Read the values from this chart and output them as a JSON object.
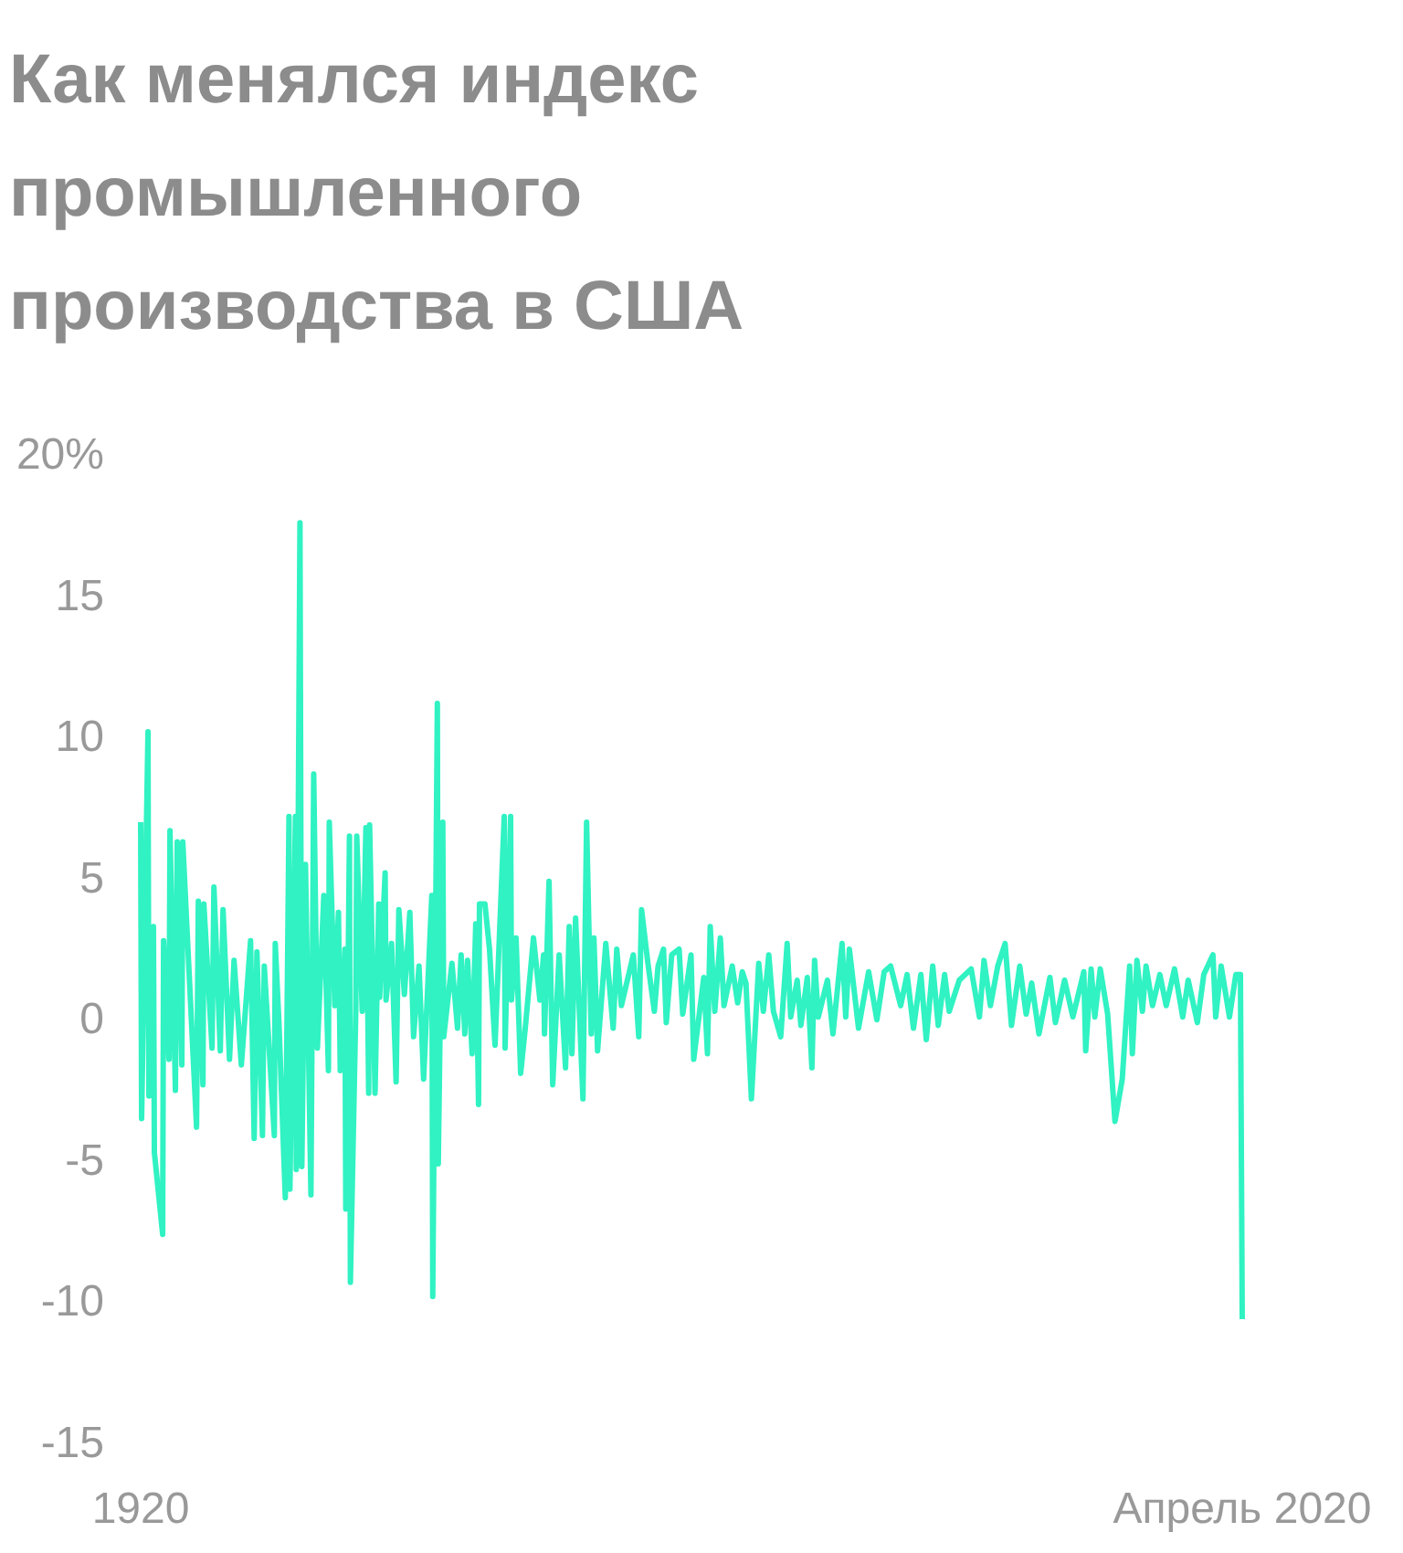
{
  "chart_data": {
    "type": "line",
    "title": "Как менялся индекс промышленного производства в США",
    "x": [
      "1920-01",
      "1920-02",
      "1920-09",
      "1920-10",
      "1921-03",
      "1921-04",
      "1922-01",
      "1922-02",
      "1922-08",
      "1922-09",
      "1923-03",
      "1923-05",
      "1923-10",
      "1923-11",
      "1925-02",
      "1925-04",
      "1925-09",
      "1925-10",
      "1926-07",
      "1926-09",
      "1927-04",
      "1927-07",
      "1928-02",
      "1928-07",
      "1929-03",
      "1930-01",
      "1930-05",
      "1930-08",
      "1931-02",
      "1931-04",
      "1932-03",
      "1932-04",
      "1932-08",
      "1933-03",
      "1933-07",
      "1933-08",
      "1934-02",
      "1934-03",
      "1934-07",
      "1934-09",
      "1935-01",
      "1935-07",
      "1935-10",
      "1936-02",
      "1936-09",
      "1937-02",
      "1937-03",
      "1937-09",
      "1938-01",
      "1938-03",
      "1938-08",
      "1938-09",
      "1939-01",
      "1939-02",
      "1939-08",
      "1939-09",
      "1940-03",
      "1940-07",
      "1940-10",
      "1940-11",
      "1941-05",
      "1941-09",
      "1941-10",
      "1942-04",
      "1942-05",
      "1942-11",
      "1943-04",
      "1943-07",
      "1944-01",
      "1944-07",
      "1944-11",
      "1945-05",
      "1945-10",
      "1946-07",
      "1946-08",
      "1947-01",
      "1947-02",
      "1947-07",
      "1947-08",
      "1948-05",
      "1948-11",
      "1949-03",
      "1949-07",
      "1949-10",
      "1950-03",
      "1950-07",
      "1950-10",
      "1950-11",
      "1951-05",
      "1951-10",
      "1952-04",
      "1953-02",
      "1953-03",
      "1953-09",
      "1953-10",
      "1954-03",
      "1954-08",
      "1955-01",
      "1955-10",
      "1956-05",
      "1956-09",
      "1956-10",
      "1957-03",
      "1957-07",
      "1958-02",
      "1958-09",
      "1959-01",
      "1959-04",
      "1959-08",
      "1960-04",
      "1960-08",
      "1961-01",
      "1961-04",
      "1961-08",
      "1962-05",
      "1963-01",
      "1963-05",
      "1963-10",
      "1964-11",
      "1965-05",
      "1965-08",
      "1966-03",
      "1966-10",
      "1967-02",
      "1967-08",
      "1967-11",
      "1968-05",
      "1969-01",
      "1969-05",
      "1970-02",
      "1970-05",
      "1971-04",
      "1971-08",
      "1971-11",
      "1972-04",
      "1972-10",
      "1973-02",
      "1973-11",
      "1974-05",
      "1974-10",
      "1975-02",
      "1975-08",
      "1975-09",
      "1976-04",
      "1976-09",
      "1977-03",
      "1977-08",
      "1978-04",
      "1978-11",
      "1979-03",
      "1979-10",
      "1980-02",
      "1980-09",
      "1981-02",
      "1981-05",
      "1981-09",
      "1982-07",
      "1983-01",
      "1983-11",
      "1984-03",
      "1984-07",
      "1985-05",
      "1986-04",
      "1987-01",
      "1987-09",
      "1988-04",
      "1989-03",
      "1989-10",
      "1990-05",
      "1991-01",
      "1991-07",
      "1992-02",
      "1992-08",
      "1993-03",
      "1993-08",
      "1994-07",
      "1995-08",
      "1996-05",
      "1996-10",
      "1997-05",
      "1998-01",
      "1998-09",
      "1999-04",
      "2000-01",
      "2000-08",
      "2001-02",
      "2001-10",
      "2002-10",
      "2003-04",
      "2004-02",
      "2004-11",
      "2005-11",
      "2006-01",
      "2006-07",
      "2006-11",
      "2007-05",
      "2008-01",
      "2008-09",
      "2009-05",
      "2010-01",
      "2010-04",
      "2010-09",
      "2011-03",
      "2011-07",
      "2012-02",
      "2012-10",
      "2013-05",
      "2014-02",
      "2014-11",
      "2015-05",
      "2016-03",
      "2016-10",
      "2017-08",
      "2017-11",
      "2018-05",
      "2019-02",
      "2019-09",
      "2020-02",
      "2020-04"
    ],
    "series": [
      {
        "color": "#30f2c2",
        "values": [
          7.0,
          -3.5,
          10.2,
          -2.7,
          3.3,
          -4.7,
          -7.6,
          2.8,
          -1.4,
          6.7,
          -2.5,
          6.3,
          -1.6,
          6.3,
          -3.8,
          4.2,
          -2.3,
          4.1,
          -1.0,
          4.7,
          -1.1,
          3.9,
          -1.4,
          2.1,
          -1.6,
          2.8,
          -4.2,
          2.4,
          -4.1,
          1.9,
          -4.1,
          2.7,
          -0.1,
          -6.3,
          7.2,
          -6.0,
          7.2,
          -5.3,
          17.6,
          -5.2,
          5.5,
          -6.2,
          8.7,
          -1.0,
          4.4,
          -1.8,
          7.0,
          0.5,
          3.8,
          -1.8,
          2.5,
          -6.7,
          6.5,
          -9.3,
          0.4,
          6.5,
          0.3,
          6.8,
          -2.6,
          6.9,
          -2.6,
          4.1,
          0.8,
          5.2,
          0.7,
          2.7,
          -2.2,
          3.9,
          0.9,
          3.8,
          -0.6,
          1.9,
          -2.1,
          4.4,
          -9.8,
          11.2,
          -5.1,
          7.0,
          -0.6,
          2.0,
          -0.3,
          2.3,
          -0.5,
          2.1,
          -1.2,
          3.4,
          -3.0,
          4.1,
          4.1,
          2.5,
          -0.9,
          7.2,
          -1.0,
          7.2,
          0.7,
          2.9,
          -1.9,
          -0.3,
          2.9,
          0.7,
          2.3,
          -0.5,
          4.9,
          -2.3,
          2.3,
          -1.7,
          3.3,
          -1.2,
          3.6,
          -2.8,
          7.0,
          -0.5,
          2.9,
          -1.1,
          2.7,
          -0.3,
          2.5,
          0.5,
          2.3,
          -0.6,
          3.9,
          2.0,
          0.3,
          1.9,
          2.5,
          -0.1,
          2.3,
          2.5,
          0.2,
          2.3,
          -1.4,
          1.5,
          -1.2,
          3.3,
          0.3,
          2.9,
          0.5,
          1.9,
          0.6,
          1.7,
          1.3,
          -2.8,
          -2.8,
          2.0,
          0.3,
          2.3,
          0.3,
          -0.6,
          2.7,
          0.1,
          1.4,
          -0.2,
          1.5,
          -1.7,
          2.1,
          0.1,
          1.4,
          -0.5,
          2.7,
          0.1,
          2.5,
          -0.3,
          1.7,
          0.0,
          1.7,
          1.9,
          0.5,
          1.6,
          -0.3,
          1.6,
          -0.7,
          1.9,
          -0.2,
          1.6,
          0.3,
          1.4,
          1.8,
          0.1,
          2.1,
          0.5,
          1.9,
          2.7,
          -0.2,
          1.9,
          0.2,
          1.3,
          -0.5,
          1.5,
          -0.1,
          1.4,
          0.1,
          1.7,
          -1.1,
          1.8,
          0.1,
          1.8,
          0.2,
          -3.6,
          -2.1,
          1.9,
          -1.2,
          2.1,
          0.3,
          1.9,
          0.5,
          1.6,
          0.5,
          1.8,
          0.1,
          1.4,
          -0.1,
          1.6,
          2.3,
          0.1,
          1.9,
          0.1,
          1.6,
          1.6,
          -10.6
        ]
      }
    ],
    "xlim": [
      "1920-01",
      "2020-04"
    ],
    "xticks": [
      {
        "value": "1920-01",
        "label": "1920"
      },
      {
        "value": "2020-04",
        "label": "Апрель 2020"
      }
    ],
    "ylim": [
      -15,
      20
    ],
    "yticks": [
      -15,
      -10,
      -5,
      0,
      5,
      10,
      15,
      {
        "value": 20,
        "label": "20%"
      }
    ],
    "grid": false,
    "marker": "none"
  }
}
